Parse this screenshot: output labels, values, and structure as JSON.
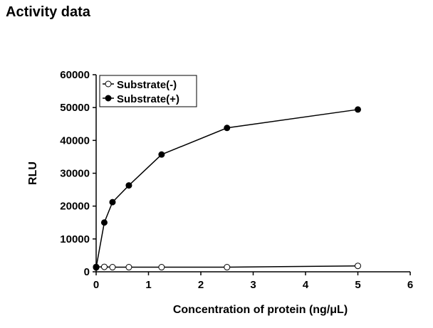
{
  "page": {
    "title": "Activity data"
  },
  "chart_data": {
    "type": "line",
    "title": "",
    "xlabel": "Concentration of protein (ng/μL)",
    "ylabel": "RLU",
    "xlim": [
      0,
      6
    ],
    "ylim": [
      0,
      60000
    ],
    "xticks": [
      0,
      1,
      2,
      3,
      4,
      5,
      6
    ],
    "yticks": [
      0,
      10000,
      20000,
      30000,
      40000,
      50000,
      60000
    ],
    "grid": false,
    "legend_position": "top-left",
    "series": [
      {
        "name": "Substrate(-)",
        "marker": "open-circle",
        "color": "#000000",
        "x": [
          0,
          0.156,
          0.3125,
          0.625,
          1.25,
          2.5,
          5
        ],
        "y": [
          1500,
          1500,
          1400,
          1400,
          1400,
          1400,
          1800
        ]
      },
      {
        "name": "Substrate(+)",
        "marker": "filled-circle",
        "color": "#000000",
        "x": [
          0,
          0.156,
          0.3125,
          0.625,
          1.25,
          2.5,
          5
        ],
        "y": [
          1300,
          15000,
          21200,
          26300,
          35700,
          43800,
          49400
        ]
      }
    ]
  }
}
